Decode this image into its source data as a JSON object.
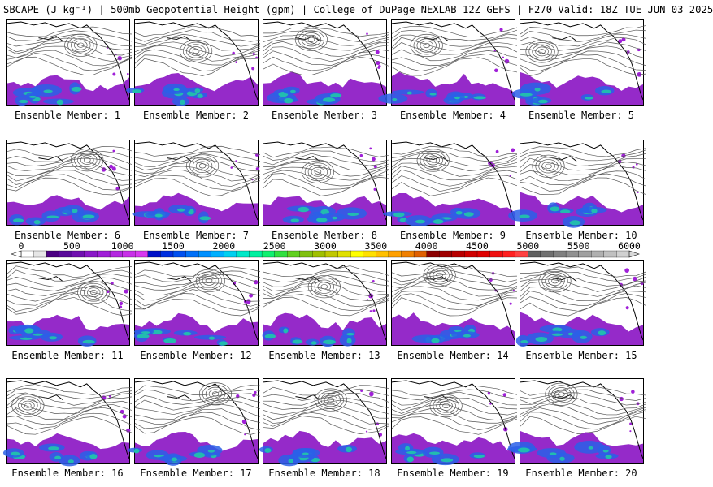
{
  "title": "SBCAPE (J kg⁻¹) | 500mb Geopotential Height (gpm) | College of DuPage NEXLAB 12Z GEFS | F270 Valid: 18Z TUE JUN 03 2025",
  "caption_prefix": "Ensemble Member: ",
  "members": [
    "1",
    "2",
    "3",
    "4",
    "5",
    "6",
    "7",
    "8",
    "9",
    "10",
    "11",
    "12",
    "13",
    "14",
    "15",
    "16",
    "17",
    "18",
    "19",
    "20"
  ],
  "colorbar": {
    "labels": [
      "0",
      "500",
      "1000",
      "1500",
      "2000",
      "2500",
      "3000",
      "3500",
      "4000",
      "4500",
      "5000",
      "5500",
      "6000"
    ],
    "colors": [
      "#ffffff",
      "#e6e6e6",
      "#4b0082",
      "#5a0a9a",
      "#7010b0",
      "#8a18c8",
      "#a020d8",
      "#b428e0",
      "#c830e8",
      "#d838f0",
      "#0010c8",
      "#0030e0",
      "#0050f0",
      "#0070f8",
      "#0090ff",
      "#00b0ff",
      "#00d0f0",
      "#00e8c8",
      "#00f0a0",
      "#10f070",
      "#30e040",
      "#60d020",
      "#80c010",
      "#a0c000",
      "#c0c800",
      "#e0e000",
      "#ffff00",
      "#ffe000",
      "#ffc000",
      "#ffa000",
      "#f08000",
      "#e06000",
      "#8b0000",
      "#a00000",
      "#b80000",
      "#d00000",
      "#e00000",
      "#f01010",
      "#ff2020",
      "#ff4040",
      "#606060",
      "#707070",
      "#808080",
      "#909090",
      "#a0a0a0",
      "#b0b0b0",
      "#c0c0c0",
      "#d0d0d0"
    ]
  }
}
